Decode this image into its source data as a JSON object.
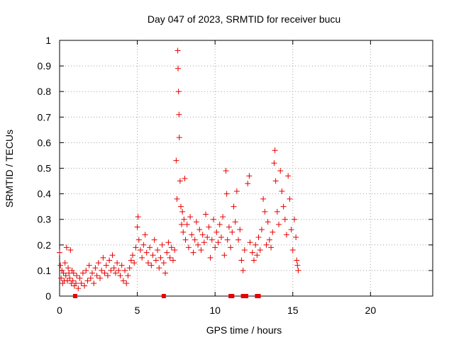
{
  "chart_data": {
    "type": "scatter",
    "title": "Day 047 of 2023, SRMTID for receiver bucu",
    "xlabel": "GPS time / hours",
    "ylabel": "SRMTID / TECUs",
    "xlim": [
      0,
      24
    ],
    "ylim": [
      0,
      1
    ],
    "xticks": [
      0,
      5,
      10,
      15,
      20
    ],
    "yticks": [
      0,
      0.1,
      0.2,
      0.3,
      0.4,
      0.5,
      0.6,
      0.7,
      0.8,
      0.9,
      1
    ],
    "x_tick_labels": [
      "0",
      "5",
      "10",
      "15",
      "20"
    ],
    "y_tick_labels": [
      "0",
      "0.1",
      "0.2",
      "0.3",
      "0.4",
      "0.5",
      "0.6",
      "0.7",
      "0.8",
      "0.9",
      "1"
    ],
    "grid": true,
    "marker": "+",
    "color": "#ff0000",
    "marker_color": "#e60000",
    "series": [
      {
        "name": "SRMTID",
        "points": [
          [
            0.0,
            0.17
          ],
          [
            0.05,
            0.12
          ],
          [
            0.1,
            0.07
          ],
          [
            0.15,
            0.1
          ],
          [
            0.2,
            0.05
          ],
          [
            0.25,
            0.09
          ],
          [
            0.3,
            0.06
          ],
          [
            0.35,
            0.13
          ],
          [
            0.4,
            0.08
          ],
          [
            0.45,
            0.19
          ],
          [
            0.5,
            0.06
          ],
          [
            0.55,
            0.11
          ],
          [
            0.6,
            0.09
          ],
          [
            0.65,
            0.07
          ],
          [
            0.7,
            0.18
          ],
          [
            0.75,
            0.05
          ],
          [
            0.8,
            0.1
          ],
          [
            0.85,
            0.06
          ],
          [
            0.9,
            0.09
          ],
          [
            0.95,
            0.04
          ],
          [
            1.05,
            0.05
          ],
          [
            1.1,
            0.08
          ],
          [
            1.2,
            0.03
          ],
          [
            1.3,
            0.07
          ],
          [
            1.4,
            0.05
          ],
          [
            1.5,
            0.09
          ],
          [
            1.6,
            0.04
          ],
          [
            1.7,
            0.1
          ],
          [
            1.8,
            0.06
          ],
          [
            1.9,
            0.12
          ],
          [
            2.0,
            0.07
          ],
          [
            2.1,
            0.09
          ],
          [
            2.2,
            0.05
          ],
          [
            2.3,
            0.11
          ],
          [
            2.4,
            0.08
          ],
          [
            2.5,
            0.13
          ],
          [
            2.6,
            0.07
          ],
          [
            2.7,
            0.1
          ],
          [
            2.8,
            0.15
          ],
          [
            2.9,
            0.09
          ],
          [
            3.0,
            0.12
          ],
          [
            3.1,
            0.08
          ],
          [
            3.2,
            0.14
          ],
          [
            3.3,
            0.1
          ],
          [
            3.4,
            0.16
          ],
          [
            3.5,
            0.11
          ],
          [
            3.6,
            0.09
          ],
          [
            3.7,
            0.13
          ],
          [
            3.8,
            0.1
          ],
          [
            3.9,
            0.08
          ],
          [
            4.0,
            0.12
          ],
          [
            4.1,
            0.06
          ],
          [
            4.2,
            0.1
          ],
          [
            4.3,
            0.05
          ],
          [
            4.4,
            0.08
          ],
          [
            4.5,
            0.11
          ],
          [
            4.6,
            0.14
          ],
          [
            4.7,
            0.16
          ],
          [
            4.8,
            0.13
          ],
          [
            4.9,
            0.19
          ],
          [
            5.0,
            0.27
          ],
          [
            5.05,
            0.31
          ],
          [
            5.1,
            0.22
          ],
          [
            5.2,
            0.18
          ],
          [
            5.3,
            0.15
          ],
          [
            5.4,
            0.2
          ],
          [
            5.5,
            0.24
          ],
          [
            5.6,
            0.17
          ],
          [
            5.7,
            0.13
          ],
          [
            5.8,
            0.19
          ],
          [
            5.9,
            0.12
          ],
          [
            6.0,
            0.16
          ],
          [
            6.1,
            0.22
          ],
          [
            6.2,
            0.14
          ],
          [
            6.3,
            0.18
          ],
          [
            6.4,
            0.11
          ],
          [
            6.5,
            0.15
          ],
          [
            6.6,
            0.2
          ],
          [
            6.7,
            0.13
          ],
          [
            6.8,
            0.09
          ],
          [
            6.9,
            0.17
          ],
          [
            7.0,
            0.21
          ],
          [
            7.1,
            0.15
          ],
          [
            7.2,
            0.19
          ],
          [
            7.3,
            0.14
          ],
          [
            7.4,
            0.18
          ],
          [
            7.5,
            0.53
          ],
          [
            7.55,
            0.38
          ],
          [
            7.6,
            0.96
          ],
          [
            7.62,
            0.89
          ],
          [
            7.65,
            0.8
          ],
          [
            7.68,
            0.71
          ],
          [
            7.7,
            0.62
          ],
          [
            7.75,
            0.45
          ],
          [
            7.8,
            0.35
          ],
          [
            7.85,
            0.28
          ],
          [
            7.9,
            0.33
          ],
          [
            7.95,
            0.25
          ],
          [
            8.0,
            0.3
          ],
          [
            8.05,
            0.46
          ],
          [
            8.1,
            0.22
          ],
          [
            8.2,
            0.28
          ],
          [
            8.3,
            0.19
          ],
          [
            8.4,
            0.31
          ],
          [
            8.5,
            0.24
          ],
          [
            8.6,
            0.17
          ],
          [
            8.7,
            0.22
          ],
          [
            8.8,
            0.29
          ],
          [
            8.9,
            0.2
          ],
          [
            9.0,
            0.26
          ],
          [
            9.1,
            0.18
          ],
          [
            9.2,
            0.24
          ],
          [
            9.3,
            0.21
          ],
          [
            9.4,
            0.32
          ],
          [
            9.5,
            0.23
          ],
          [
            9.6,
            0.27
          ],
          [
            9.7,
            0.15
          ],
          [
            9.8,
            0.22
          ],
          [
            9.9,
            0.3
          ],
          [
            10.0,
            0.19
          ],
          [
            10.1,
            0.25
          ],
          [
            10.2,
            0.21
          ],
          [
            10.3,
            0.28
          ],
          [
            10.4,
            0.23
          ],
          [
            10.5,
            0.31
          ],
          [
            10.6,
            0.16
          ],
          [
            10.7,
            0.49
          ],
          [
            10.75,
            0.4
          ],
          [
            10.8,
            0.22
          ],
          [
            10.9,
            0.27
          ],
          [
            11.0,
            0.19
          ],
          [
            11.1,
            0.25
          ],
          [
            11.2,
            0.35
          ],
          [
            11.3,
            0.29
          ],
          [
            11.4,
            0.41
          ],
          [
            11.5,
            0.22
          ],
          [
            11.6,
            0.26
          ],
          [
            11.7,
            0.14
          ],
          [
            11.8,
            0.1
          ],
          [
            11.9,
            0.18
          ],
          [
            12.1,
            0.44
          ],
          [
            12.2,
            0.47
          ],
          [
            12.25,
            0.21
          ],
          [
            12.4,
            0.17
          ],
          [
            12.5,
            0.14
          ],
          [
            12.6,
            0.2
          ],
          [
            12.7,
            0.16
          ],
          [
            12.8,
            0.23
          ],
          [
            12.9,
            0.18
          ],
          [
            13.0,
            0.26
          ],
          [
            13.1,
            0.38
          ],
          [
            13.2,
            0.33
          ],
          [
            13.3,
            0.2
          ],
          [
            13.4,
            0.29
          ],
          [
            13.5,
            0.22
          ],
          [
            13.6,
            0.19
          ],
          [
            13.7,
            0.25
          ],
          [
            13.8,
            0.52
          ],
          [
            13.85,
            0.57
          ],
          [
            13.9,
            0.45
          ],
          [
            14.0,
            0.33
          ],
          [
            14.1,
            0.28
          ],
          [
            14.2,
            0.49
          ],
          [
            14.3,
            0.41
          ],
          [
            14.4,
            0.35
          ],
          [
            14.5,
            0.3
          ],
          [
            14.6,
            0.24
          ],
          [
            14.7,
            0.47
          ],
          [
            14.8,
            0.38
          ],
          [
            14.9,
            0.26
          ],
          [
            15.0,
            0.18
          ],
          [
            15.1,
            0.3
          ],
          [
            15.2,
            0.23
          ],
          [
            15.25,
            0.14
          ],
          [
            15.3,
            0.12
          ],
          [
            15.35,
            0.1
          ]
        ]
      }
    ],
    "baseline_markers_x": [
      1.0,
      6.7,
      11.0,
      11.1,
      11.8,
      11.9,
      12.0,
      12.7,
      12.8
    ]
  }
}
